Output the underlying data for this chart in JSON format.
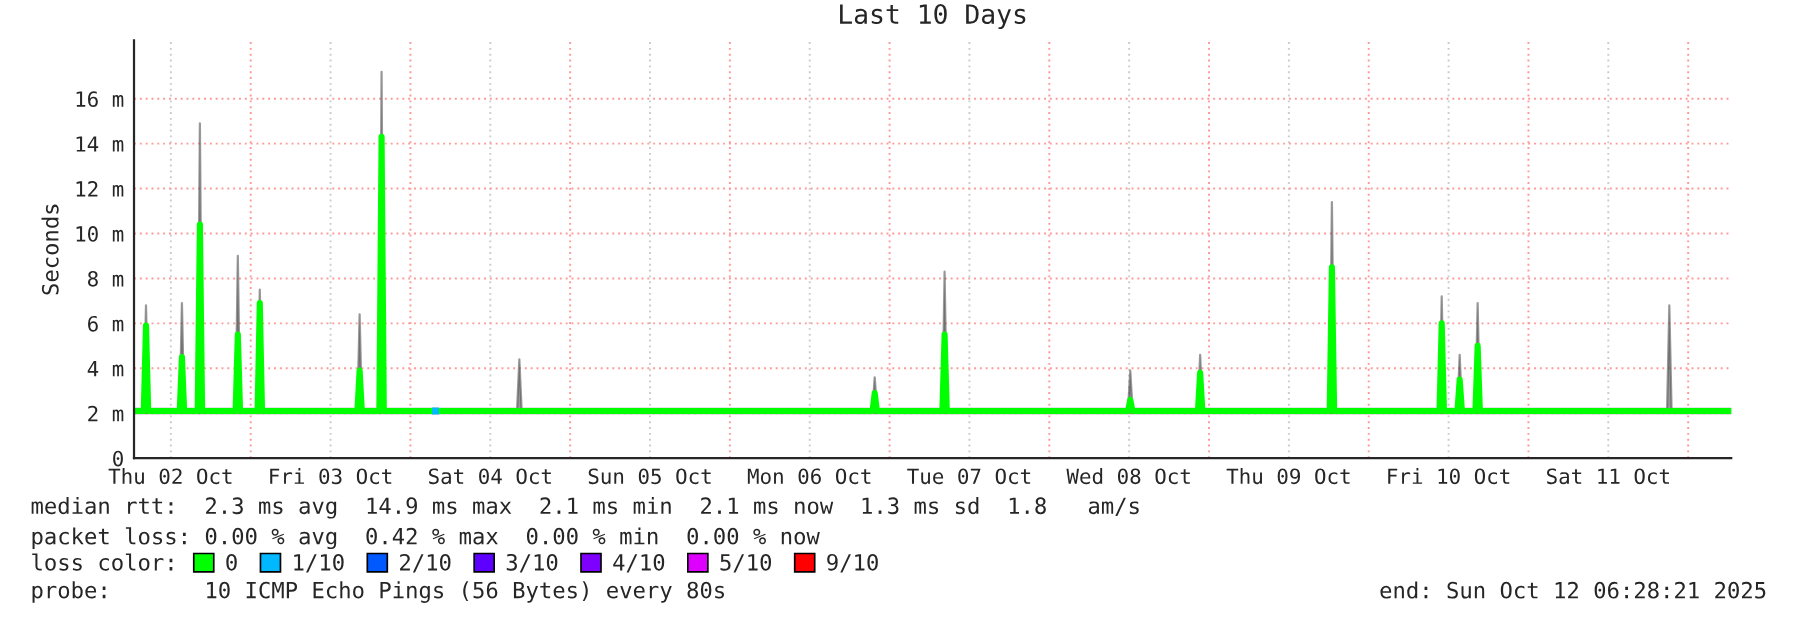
{
  "chart_data": {
    "type": "line",
    "title": "Last 10 Days",
    "ylabel": "Seconds",
    "xlim": [
      "2025-10-02T06:28",
      "2025-10-12T06:28"
    ],
    "xticks": [
      {
        "value": "2025-10-02T12:00",
        "label": "Thu 02 Oct"
      },
      {
        "value": "2025-10-03T00:00",
        "label": null
      },
      {
        "value": "2025-10-03T12:00",
        "label": "Fri 03 Oct"
      },
      {
        "value": "2025-10-04T00:00",
        "label": null
      },
      {
        "value": "2025-10-04T12:00",
        "label": "Sat 04 Oct"
      },
      {
        "value": "2025-10-05T00:00",
        "label": null
      },
      {
        "value": "2025-10-05T12:00",
        "label": "Sun 05 Oct"
      },
      {
        "value": "2025-10-06T00:00",
        "label": null
      },
      {
        "value": "2025-10-06T12:00",
        "label": "Mon 06 Oct"
      },
      {
        "value": "2025-10-07T00:00",
        "label": null
      },
      {
        "value": "2025-10-07T12:00",
        "label": "Tue 07 Oct"
      },
      {
        "value": "2025-10-08T00:00",
        "label": null
      },
      {
        "value": "2025-10-08T12:00",
        "label": "Wed 08 Oct"
      },
      {
        "value": "2025-10-09T00:00",
        "label": null
      },
      {
        "value": "2025-10-09T12:00",
        "label": "Thu 09 Oct"
      },
      {
        "value": "2025-10-10T00:00",
        "label": null
      },
      {
        "value": "2025-10-10T12:00",
        "label": "Fri 10 Oct"
      },
      {
        "value": "2025-10-11T00:00",
        "label": null
      },
      {
        "value": "2025-10-11T12:00",
        "label": "Sat 11 Oct"
      },
      {
        "value": "2025-10-12T00:00",
        "label": null
      }
    ],
    "ylim": [
      0,
      18.6
    ],
    "yticks": [
      0,
      {
        "value": 2,
        "label": "2 m"
      },
      {
        "value": 4,
        "label": "4 m"
      },
      {
        "value": 6,
        "label": "6 m"
      },
      {
        "value": 8,
        "label": "8 m"
      },
      {
        "value": 10,
        "label": "10 m"
      },
      {
        "value": 12,
        "label": "12 m"
      },
      {
        "value": 14,
        "label": "14 m"
      },
      {
        "value": 16,
        "label": "16 m"
      }
    ],
    "grid": true,
    "legend": "bottom",
    "legend_title": "loss color:",
    "series": [
      {
        "name": "0",
        "color": "#00ff00",
        "x": [
          "2025-10-02T06:28",
          "2025-10-02T07:56",
          "2025-10-02T08:16",
          "2025-10-02T08:36",
          "2025-10-02T13:20",
          "2025-10-02T13:40",
          "2025-10-02T14:00",
          "2025-10-02T16:02",
          "2025-10-02T16:22",
          "2025-10-02T16:42",
          "2025-10-02T21:44",
          "2025-10-02T22:04",
          "2025-10-02T22:24",
          "2025-10-03T01:02",
          "2025-10-03T01:22",
          "2025-10-03T01:42",
          "2025-10-03T16:02",
          "2025-10-03T16:22",
          "2025-10-03T16:42",
          "2025-10-03T19:20",
          "2025-10-03T19:40",
          "2025-10-03T20:00",
          "2025-10-04T16:02",
          "2025-10-04T16:22",
          "2025-10-04T16:42",
          "2025-10-06T21:26",
          "2025-10-06T21:46",
          "2025-10-06T22:06",
          "2025-10-07T07:56",
          "2025-10-07T08:16",
          "2025-10-07T08:36",
          "2025-10-08T11:50",
          "2025-10-08T12:10",
          "2025-10-08T12:30",
          "2025-10-08T22:20",
          "2025-10-08T22:40",
          "2025-10-08T23:00",
          "2025-10-09T18:08",
          "2025-10-09T18:28",
          "2025-10-09T18:48",
          "2025-10-10T10:38",
          "2025-10-10T10:58",
          "2025-10-10T11:18",
          "2025-10-10T13:20",
          "2025-10-10T13:40",
          "2025-10-10T14:00",
          "2025-10-10T16:02",
          "2025-10-10T16:22",
          "2025-10-10T16:42",
          "2025-10-11T20:50",
          "2025-10-11T21:10",
          "2025-10-11T21:30",
          "2025-10-12T06:28"
        ],
        "values": [
          2.1,
          2.1,
          5.9,
          2.1,
          2.1,
          4.5,
          2.1,
          2.1,
          10.4,
          2.1,
          2.1,
          5.5,
          2.1,
          2.1,
          6.9,
          2.1,
          2.1,
          3.9,
          2.1,
          2.1,
          14.3,
          2.1,
          2.1,
          2.1,
          2.1,
          2.1,
          2.9,
          2.1,
          2.1,
          5.5,
          2.1,
          2.1,
          2.6,
          2.1,
          2.1,
          3.8,
          2.1,
          2.1,
          8.5,
          2.1,
          2.1,
          6.0,
          2.1,
          2.1,
          3.5,
          2.1,
          2.1,
          5.0,
          2.1,
          2.1,
          2.1,
          2.1,
          2.1
        ],
        "lower": [
          2.0,
          2.0,
          2.0,
          2.0,
          2.0,
          2.0,
          2.0,
          2.0,
          2.0,
          2.0,
          2.0,
          2.0,
          2.0,
          2.0,
          2.0,
          2.0,
          2.0,
          2.0,
          2.0,
          2.0,
          2.0,
          2.0,
          2.0,
          2.0,
          2.0,
          2.0,
          2.0,
          2.0,
          2.0,
          2.0,
          2.0,
          2.0,
          2.0,
          2.0,
          2.0,
          2.0,
          2.0,
          2.0,
          2.0,
          2.0,
          2.0,
          2.0,
          2.0,
          2.0,
          2.0,
          2.0,
          2.0,
          2.0,
          2.0,
          2.0,
          2.0,
          2.0,
          2.0
        ],
        "upper": [
          2.2,
          2.2,
          6.8,
          2.2,
          2.2,
          6.9,
          2.2,
          2.2,
          14.9,
          2.2,
          2.2,
          9.0,
          2.2,
          2.2,
          7.5,
          2.2,
          2.2,
          6.4,
          2.2,
          2.2,
          17.2,
          2.2,
          2.2,
          4.4,
          2.2,
          2.2,
          3.6,
          2.2,
          2.2,
          8.3,
          2.2,
          2.2,
          3.9,
          2.2,
          2.2,
          4.6,
          2.2,
          2.2,
          11.4,
          2.2,
          2.2,
          7.2,
          2.2,
          2.2,
          4.6,
          2.2,
          2.2,
          6.9,
          2.2,
          2.2,
          6.8,
          2.2,
          2.2
        ]
      },
      {
        "name": "1/10",
        "color": "#00b8ff",
        "type": "scatter",
        "x": [
          "2025-10-04T03:46"
        ],
        "values": [
          2.1
        ]
      },
      {
        "name": "2/10",
        "color": "#0059ff",
        "type": "scatter"
      },
      {
        "name": "3/10",
        "color": "#5e00ff",
        "type": "scatter"
      },
      {
        "name": "4/10",
        "color": "#7e00ff",
        "type": "scatter"
      },
      {
        "name": "5/10",
        "color": "#dd00ff",
        "type": "scatter"
      },
      {
        "name": "9/10",
        "color": "#ff0000",
        "type": "scatter"
      }
    ],
    "annotations": [
      "median rtt:  2.3 ms avg  14.9 ms max  2.1 ms min  2.1 ms now  1.3 ms sd  1.8   am/s",
      "packet loss: 0.00 % avg  0.42 % max  0.00 % min  0.00 % now",
      "probe:       10 ICMP Echo Pings (56 Bytes) every 80s",
      "end: Sun Oct 12 06:28:21 2025"
    ]
  }
}
